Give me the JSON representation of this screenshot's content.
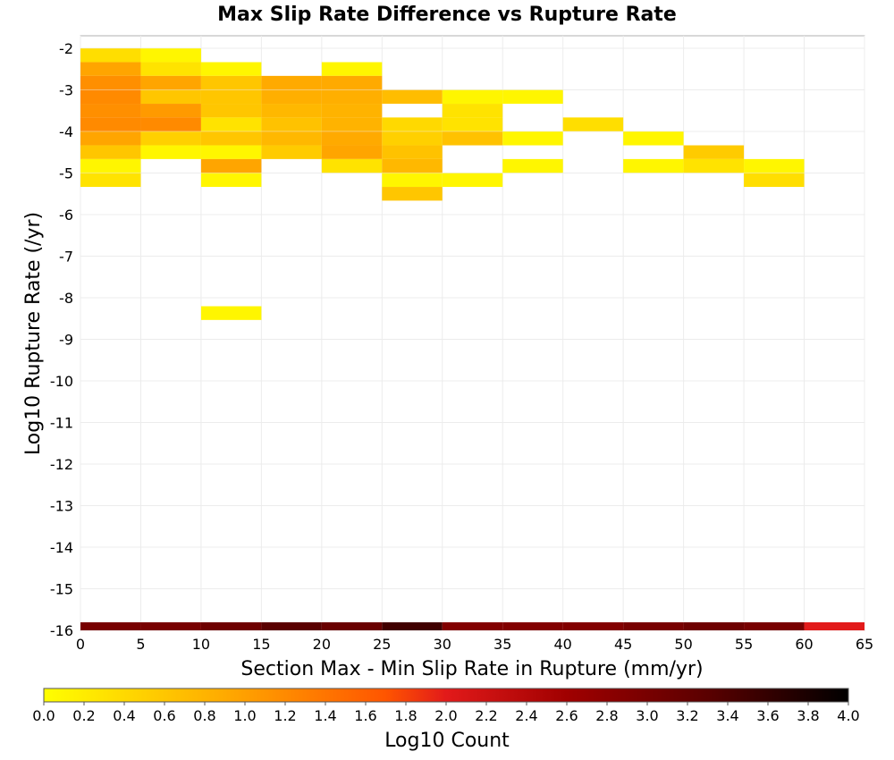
{
  "chart_data": {
    "type": "heatmap",
    "title": "Max Slip Rate Difference vs Rupture Rate",
    "xlabel": "Section Max - Min Slip Rate in Rupture (mm/yr)",
    "ylabel": "Log10 Rupture Rate (/yr)",
    "xlim": [
      0,
      65
    ],
    "ylim": [
      -16,
      -1.7
    ],
    "x_bin_width": 5,
    "y_bin_height": 0.33,
    "x_ticks": [
      0,
      5,
      10,
      15,
      20,
      25,
      30,
      35,
      40,
      45,
      50,
      55,
      60,
      65
    ],
    "y_ticks": [
      -2,
      -3,
      -4,
      -5,
      -6,
      -7,
      -8,
      -9,
      -10,
      -11,
      -12,
      -13,
      -14,
      -15,
      -16
    ],
    "grid": true,
    "colorbar": {
      "label": "Log10 Count",
      "range": [
        0.0,
        4.0
      ],
      "ticks": [
        "0.0",
        "0.2",
        "0.4",
        "0.6",
        "0.8",
        "1.0",
        "1.2",
        "1.4",
        "1.6",
        "1.8",
        "2.0",
        "2.2",
        "2.4",
        "2.6",
        "2.8",
        "3.0",
        "3.2",
        "3.4",
        "3.6",
        "3.8",
        "4.0"
      ],
      "stops": [
        {
          "v": 0.0,
          "color": "#ffff00"
        },
        {
          "v": 0.9,
          "color": "#ffaa00"
        },
        {
          "v": 1.7,
          "color": "#ff5500"
        },
        {
          "v": 2.0,
          "color": "#e21a1a"
        },
        {
          "v": 2.6,
          "color": "#a00000"
        },
        {
          "v": 3.3,
          "color": "#5a0000"
        },
        {
          "v": 4.0,
          "color": "#000000"
        }
      ]
    },
    "cells": [
      {
        "x": 0,
        "y": -2.17,
        "v": 0.35
      },
      {
        "x": 0,
        "y": -2.5,
        "v": 0.95
      },
      {
        "x": 0,
        "y": -2.83,
        "v": 1.15
      },
      {
        "x": 0,
        "y": -3.17,
        "v": 1.2
      },
      {
        "x": 0,
        "y": -3.5,
        "v": 1.15
      },
      {
        "x": 0,
        "y": -3.83,
        "v": 1.2
      },
      {
        "x": 0,
        "y": -4.17,
        "v": 0.95
      },
      {
        "x": 0,
        "y": -4.5,
        "v": 0.6
      },
      {
        "x": 0,
        "y": -4.83,
        "v": 0.1
      },
      {
        "x": 0,
        "y": -5.17,
        "v": 0.3
      },
      {
        "x": 5,
        "y": -2.17,
        "v": 0.1
      },
      {
        "x": 5,
        "y": -2.5,
        "v": 0.3
      },
      {
        "x": 5,
        "y": -2.83,
        "v": 0.95
      },
      {
        "x": 5,
        "y": -3.17,
        "v": 0.6
      },
      {
        "x": 5,
        "y": -3.5,
        "v": 1.05
      },
      {
        "x": 5,
        "y": -3.83,
        "v": 1.2
      },
      {
        "x": 5,
        "y": -4.17,
        "v": 0.5
      },
      {
        "x": 5,
        "y": -4.5,
        "v": 0.1
      },
      {
        "x": 10,
        "y": -2.5,
        "v": 0.1
      },
      {
        "x": 10,
        "y": -2.83,
        "v": 0.6
      },
      {
        "x": 10,
        "y": -3.17,
        "v": 0.6
      },
      {
        "x": 10,
        "y": -3.5,
        "v": 0.6
      },
      {
        "x": 10,
        "y": -3.83,
        "v": 0.3
      },
      {
        "x": 10,
        "y": -4.17,
        "v": 0.6
      },
      {
        "x": 10,
        "y": -4.5,
        "v": 0.1
      },
      {
        "x": 10,
        "y": -4.83,
        "v": 0.95
      },
      {
        "x": 10,
        "y": -5.17,
        "v": 0.1
      },
      {
        "x": 10,
        "y": -8.37,
        "v": 0.1
      },
      {
        "x": 15,
        "y": -2.83,
        "v": 0.9
      },
      {
        "x": 15,
        "y": -3.17,
        "v": 0.85
      },
      {
        "x": 15,
        "y": -3.5,
        "v": 0.75
      },
      {
        "x": 15,
        "y": -3.83,
        "v": 0.65
      },
      {
        "x": 15,
        "y": -4.17,
        "v": 0.75
      },
      {
        "x": 15,
        "y": -4.5,
        "v": 0.55
      },
      {
        "x": 20,
        "y": -2.5,
        "v": 0.1
      },
      {
        "x": 20,
        "y": -2.83,
        "v": 0.9
      },
      {
        "x": 20,
        "y": -3.17,
        "v": 0.85
      },
      {
        "x": 20,
        "y": -3.5,
        "v": 0.8
      },
      {
        "x": 20,
        "y": -3.83,
        "v": 0.8
      },
      {
        "x": 20,
        "y": -4.17,
        "v": 0.9
      },
      {
        "x": 20,
        "y": -4.5,
        "v": 0.95
      },
      {
        "x": 20,
        "y": -4.83,
        "v": 0.3
      },
      {
        "x": 25,
        "y": -3.17,
        "v": 0.7
      },
      {
        "x": 25,
        "y": -3.83,
        "v": 0.4
      },
      {
        "x": 25,
        "y": -4.17,
        "v": 0.5
      },
      {
        "x": 25,
        "y": -4.5,
        "v": 0.65
      },
      {
        "x": 25,
        "y": -4.83,
        "v": 0.75
      },
      {
        "x": 25,
        "y": -5.17,
        "v": 0.1
      },
      {
        "x": 25,
        "y": -5.5,
        "v": 0.6
      },
      {
        "x": 30,
        "y": -3.17,
        "v": 0.1
      },
      {
        "x": 30,
        "y": -3.5,
        "v": 0.3
      },
      {
        "x": 30,
        "y": -3.83,
        "v": 0.3
      },
      {
        "x": 30,
        "y": -4.17,
        "v": 0.65
      },
      {
        "x": 30,
        "y": -5.17,
        "v": 0.1
      },
      {
        "x": 35,
        "y": -3.17,
        "v": 0.1
      },
      {
        "x": 35,
        "y": -4.17,
        "v": 0.1
      },
      {
        "x": 35,
        "y": -4.83,
        "v": 0.1
      },
      {
        "x": 40,
        "y": -3.83,
        "v": 0.35
      },
      {
        "x": 45,
        "y": -4.17,
        "v": 0.1
      },
      {
        "x": 45,
        "y": -4.83,
        "v": 0.1
      },
      {
        "x": 50,
        "y": -4.5,
        "v": 0.55
      },
      {
        "x": 50,
        "y": -4.83,
        "v": 0.3
      },
      {
        "x": 55,
        "y": -4.83,
        "v": 0.1
      },
      {
        "x": 55,
        "y": -5.17,
        "v": 0.35
      }
    ],
    "baseline_row": {
      "y_bottom": -16,
      "label_note": "",
      "values": [
        {
          "x": 0,
          "v": 3.0
        },
        {
          "x": 5,
          "v": 3.0
        },
        {
          "x": 10,
          "v": 3.1
        },
        {
          "x": 15,
          "v": 3.3
        },
        {
          "x": 20,
          "v": 3.15
        },
        {
          "x": 25,
          "v": 3.5
        },
        {
          "x": 30,
          "v": 2.9
        },
        {
          "x": 35,
          "v": 2.9
        },
        {
          "x": 40,
          "v": 2.9
        },
        {
          "x": 45,
          "v": 3.0
        },
        {
          "x": 50,
          "v": 3.1
        },
        {
          "x": 55,
          "v": 3.0
        },
        {
          "x": 60,
          "v": 2.0
        }
      ]
    }
  }
}
